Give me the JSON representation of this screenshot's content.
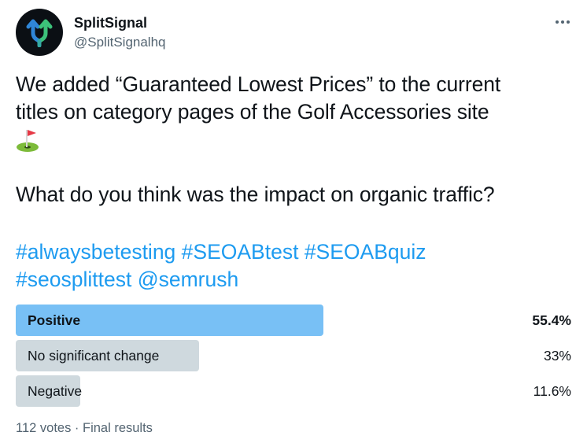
{
  "author": {
    "name": "SplitSignal",
    "handle": "@SplitSignalhq",
    "avatar_icon": "split-arrows-icon"
  },
  "menu": {
    "icon": "more-horizontal-icon",
    "glyph": "···"
  },
  "tweet": {
    "text_lines": [
      "We added “Guaranteed Lowest Prices” to the current",
      "titles on category pages of the Golf Accessories site"
    ],
    "emoji": "⛳",
    "question": "What do you think was the impact on organic traffic?"
  },
  "tags_line1": [
    "#alwaysbetesting",
    "#SEOABtest",
    "#SEOABquiz"
  ],
  "tags_line2": [
    "#seosplittest",
    "@semrush"
  ],
  "poll": {
    "options": [
      {
        "label": "Positive",
        "percent_text": "55.4%",
        "percent": 55.4,
        "winner": true
      },
      {
        "label": "No significant change",
        "percent_text": "33%",
        "percent": 33,
        "winner": false
      },
      {
        "label": "Negative",
        "percent_text": "11.6%",
        "percent": 11.6,
        "winner": false
      }
    ],
    "footer": "112 votes · Final results"
  },
  "colors": {
    "link": "#1d9bf0",
    "winner_bar": "#78c0f5",
    "bar": "#cfd9de",
    "secondary_text": "#536471"
  }
}
